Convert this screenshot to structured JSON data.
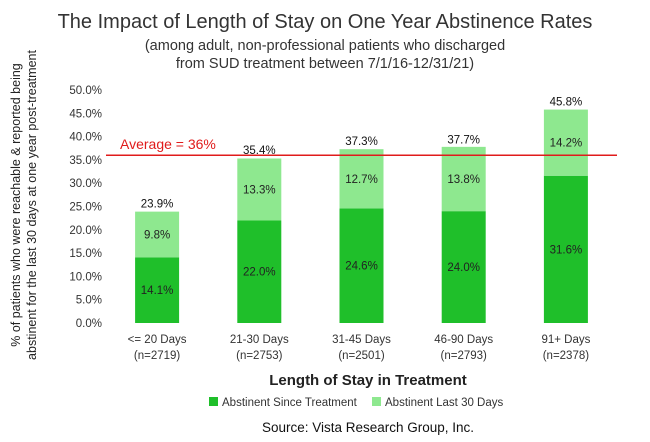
{
  "chart_data": {
    "type": "bar",
    "stacked": true,
    "title": "The Impact of Length of Stay on One Year Abstinence Rates",
    "subtitle_lines": [
      "(among adult, non-professional patients who discharged",
      "from SUD treatment between 7/1/16-12/31/21)"
    ],
    "categories": [
      "<= 20 Days",
      "21-30 Days",
      "31-45 Days",
      "46-90 Days",
      "91+ Days"
    ],
    "category_counts": [
      "(n=2719)",
      "(n=2753)",
      "(n=2501)",
      "(n=2793)",
      "(n=2378)"
    ],
    "series": [
      {
        "name": "Abstinent Since Treatment",
        "color": "#1fbf2a",
        "values": [
          14.1,
          22.0,
          24.6,
          24.0,
          31.6
        ],
        "labels": [
          "14.1%",
          "22.0%",
          "24.6%",
          "24.0%",
          "31.6%"
        ]
      },
      {
        "name": "Abstinent Last 30 Days",
        "color": "#8ee88f",
        "values": [
          9.8,
          13.3,
          12.7,
          13.8,
          14.2
        ],
        "labels": [
          "9.8%",
          "13.3%",
          "12.7%",
          "13.8%",
          "14.2%"
        ]
      }
    ],
    "totals": [
      23.9,
      35.4,
      37.3,
      37.7,
      45.8
    ],
    "total_labels": [
      "23.9%",
      "35.4%",
      "37.3%",
      "37.7%",
      "45.8%"
    ],
    "reference_line": {
      "value": 36,
      "label": "Average = 36%",
      "color": "#e01b1b"
    },
    "xlabel": "Length of Stay in Treatment",
    "ylabel_lines": [
      "% of patients who were reachable & reported being",
      "abstinent for the last 30 days at one year post-treatment"
    ],
    "ylim": [
      0,
      50
    ],
    "ytick_values": [
      0,
      5,
      10,
      15,
      20,
      25,
      30,
      35,
      40,
      45,
      50
    ],
    "ytick_labels": [
      "0.0%",
      "5.0%",
      "10.0%",
      "15.0%",
      "20.0%",
      "25.0%",
      "30.0%",
      "35.0%",
      "40.0%",
      "45.0%",
      "50.0%"
    ],
    "grid": false,
    "legend_position": "bottom",
    "source": "Source:  Vista Research Group, Inc."
  }
}
